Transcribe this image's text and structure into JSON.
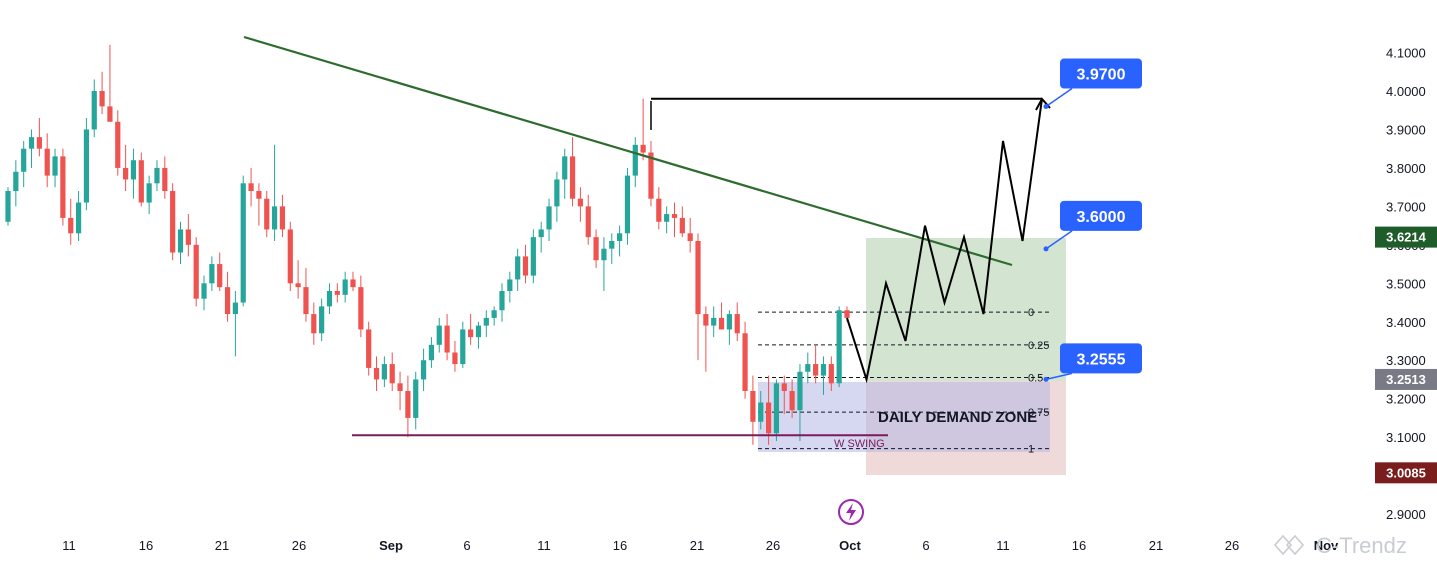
{
  "chart_data": {
    "type": "candlestick",
    "price_axis": {
      "ticks": [
        "4.1000",
        "4.0000",
        "3.9000",
        "3.8000",
        "3.7000",
        "3.6000",
        "3.5000",
        "3.4000",
        "3.3000",
        "3.2000",
        "3.1000",
        "2.9000"
      ],
      "range": [
        2.87,
        4.16
      ]
    },
    "time_axis": {
      "labels": [
        "11",
        "16",
        "21",
        "26",
        "Sep",
        "6",
        "11",
        "16",
        "21",
        "26",
        "Oct",
        "6",
        "11",
        "16",
        "21",
        "26",
        "Nov"
      ]
    },
    "price_badges": [
      {
        "name": "upper-target-badge",
        "value": "3.6214",
        "price": 3.6214,
        "color": "#1e5c2a"
      },
      {
        "name": "current-price-badge",
        "value": "3.2513",
        "price": 3.2513,
        "color": "#787b86"
      },
      {
        "name": "stop-badge",
        "value": "3.0085",
        "price": 3.0085,
        "color": "#7a1d1d"
      }
    ],
    "callouts": [
      {
        "name": "callout-target-2",
        "label": "3.9700",
        "price": 3.97,
        "color": "#2962ff"
      },
      {
        "name": "callout-target-1",
        "label": "3.6000",
        "price": 3.6,
        "color": "#2962ff"
      },
      {
        "name": "callout-entry",
        "label": "3.2555",
        "price": 3.2555,
        "color": "#2962ff"
      }
    ],
    "fib_levels": [
      {
        "label": "0",
        "price": 3.425
      },
      {
        "label": "0.25",
        "price": 3.34
      },
      {
        "label": "0.5",
        "price": 3.255
      },
      {
        "label": "0.75",
        "price": 3.165
      },
      {
        "label": "1",
        "price": 3.07
      }
    ],
    "annotations": {
      "demand_zone_label": "DAILY DEMAND ZONE",
      "swing_label": "W SWING",
      "watermark": "C-Trendz",
      "swing_low_price": 3.105,
      "target_high_price": 3.98,
      "entry_price": 3.2555,
      "stop_price": 3.0085,
      "tp_price": 3.6214
    },
    "colors": {
      "up": "#26a69a",
      "down": "#ef5350",
      "trendline": "#2e6b2e",
      "swing": "#7b1b5c",
      "callout": "#2962ff"
    },
    "candles": [
      [
        3.66,
        3.75,
        3.65,
        3.74
      ],
      [
        3.74,
        3.82,
        3.7,
        3.79
      ],
      [
        3.79,
        3.87,
        3.75,
        3.85
      ],
      [
        3.85,
        3.9,
        3.8,
        3.88
      ],
      [
        3.88,
        3.93,
        3.83,
        3.85
      ],
      [
        3.85,
        3.89,
        3.75,
        3.78
      ],
      [
        3.78,
        3.85,
        3.75,
        3.83
      ],
      [
        3.83,
        3.85,
        3.65,
        3.67
      ],
      [
        3.67,
        3.72,
        3.6,
        3.63
      ],
      [
        3.63,
        3.74,
        3.61,
        3.71
      ],
      [
        3.71,
        3.93,
        3.69,
        3.9
      ],
      [
        3.9,
        4.03,
        3.88,
        4.0
      ],
      [
        4.0,
        4.05,
        3.94,
        3.96
      ],
      [
        3.96,
        4.12,
        3.93,
        3.92
      ],
      [
        3.92,
        3.95,
        3.78,
        3.8
      ],
      [
        3.8,
        3.86,
        3.74,
        3.77
      ],
      [
        3.77,
        3.85,
        3.72,
        3.82
      ],
      [
        3.82,
        3.84,
        3.7,
        3.71
      ],
      [
        3.71,
        3.78,
        3.68,
        3.76
      ],
      [
        3.76,
        3.82,
        3.74,
        3.8
      ],
      [
        3.8,
        3.83,
        3.72,
        3.74
      ],
      [
        3.74,
        3.76,
        3.56,
        3.58
      ],
      [
        3.58,
        3.66,
        3.55,
        3.64
      ],
      [
        3.64,
        3.68,
        3.57,
        3.6
      ],
      [
        3.6,
        3.62,
        3.44,
        3.46
      ],
      [
        3.46,
        3.52,
        3.43,
        3.5
      ],
      [
        3.5,
        3.57,
        3.48,
        3.55
      ],
      [
        3.55,
        3.58,
        3.48,
        3.49
      ],
      [
        3.49,
        3.53,
        3.4,
        3.42
      ],
      [
        3.42,
        3.48,
        3.31,
        3.45
      ],
      [
        3.45,
        3.78,
        3.44,
        3.76
      ],
      [
        3.76,
        3.8,
        3.7,
        3.74
      ],
      [
        3.74,
        3.76,
        3.65,
        3.72
      ],
      [
        3.72,
        3.74,
        3.62,
        3.64
      ],
      [
        3.64,
        3.86,
        3.61,
        3.7
      ],
      [
        3.7,
        3.73,
        3.62,
        3.64
      ],
      [
        3.64,
        3.66,
        3.48,
        3.5
      ],
      [
        3.5,
        3.56,
        3.46,
        3.49
      ],
      [
        3.49,
        3.54,
        3.4,
        3.42
      ],
      [
        3.42,
        3.45,
        3.34,
        3.37
      ],
      [
        3.37,
        3.46,
        3.35,
        3.44
      ],
      [
        3.44,
        3.5,
        3.42,
        3.48
      ],
      [
        3.48,
        3.5,
        3.45,
        3.47
      ],
      [
        3.47,
        3.53,
        3.45,
        3.51
      ],
      [
        3.51,
        3.53,
        3.48,
        3.49
      ],
      [
        3.49,
        3.52,
        3.36,
        3.38
      ],
      [
        3.38,
        3.4,
        3.26,
        3.28
      ],
      [
        3.28,
        3.31,
        3.22,
        3.25
      ],
      [
        3.25,
        3.31,
        3.23,
        3.29
      ],
      [
        3.29,
        3.32,
        3.22,
        3.24
      ],
      [
        3.24,
        3.27,
        3.17,
        3.22
      ],
      [
        3.22,
        3.26,
        3.1,
        3.15
      ],
      [
        3.15,
        3.27,
        3.12,
        3.25
      ],
      [
        3.25,
        3.33,
        3.22,
        3.3
      ],
      [
        3.3,
        3.36,
        3.28,
        3.34
      ],
      [
        3.34,
        3.41,
        3.32,
        3.39
      ],
      [
        3.39,
        3.42,
        3.3,
        3.32
      ],
      [
        3.32,
        3.35,
        3.27,
        3.29
      ],
      [
        3.29,
        3.4,
        3.28,
        3.38
      ],
      [
        3.38,
        3.42,
        3.34,
        3.36
      ],
      [
        3.36,
        3.4,
        3.33,
        3.39
      ],
      [
        3.39,
        3.43,
        3.36,
        3.41
      ],
      [
        3.41,
        3.44,
        3.39,
        3.43
      ],
      [
        3.43,
        3.5,
        3.4,
        3.48
      ],
      [
        3.48,
        3.53,
        3.45,
        3.51
      ],
      [
        3.51,
        3.59,
        3.48,
        3.57
      ],
      [
        3.57,
        3.6,
        3.5,
        3.52
      ],
      [
        3.52,
        3.64,
        3.5,
        3.62
      ],
      [
        3.62,
        3.66,
        3.58,
        3.64
      ],
      [
        3.64,
        3.72,
        3.61,
        3.7
      ],
      [
        3.7,
        3.79,
        3.66,
        3.77
      ],
      [
        3.77,
        3.85,
        3.72,
        3.83
      ],
      [
        3.83,
        3.88,
        3.7,
        3.72
      ],
      [
        3.72,
        3.75,
        3.66,
        3.7
      ],
      [
        3.7,
        3.73,
        3.6,
        3.62
      ],
      [
        3.62,
        3.64,
        3.54,
        3.56
      ],
      [
        3.56,
        3.62,
        3.48,
        3.59
      ],
      [
        3.59,
        3.63,
        3.55,
        3.61
      ],
      [
        3.61,
        3.65,
        3.57,
        3.63
      ],
      [
        3.63,
        3.8,
        3.6,
        3.78
      ],
      [
        3.78,
        3.88,
        3.75,
        3.86
      ],
      [
        3.86,
        3.98,
        3.82,
        3.84
      ],
      [
        3.84,
        3.87,
        3.7,
        3.72
      ],
      [
        3.72,
        3.75,
        3.64,
        3.66
      ],
      [
        3.66,
        3.7,
        3.63,
        3.68
      ],
      [
        3.68,
        3.71,
        3.62,
        3.67
      ],
      [
        3.67,
        3.7,
        3.62,
        3.63
      ],
      [
        3.63,
        3.67,
        3.58,
        3.61
      ],
      [
        3.61,
        3.63,
        3.3,
        3.42
      ],
      [
        3.42,
        3.44,
        3.27,
        3.39
      ],
      [
        3.39,
        3.44,
        3.36,
        3.41
      ],
      [
        3.41,
        3.45,
        3.38,
        3.38
      ],
      [
        3.38,
        3.43,
        3.34,
        3.42
      ],
      [
        3.42,
        3.45,
        3.35,
        3.37
      ],
      [
        3.37,
        3.4,
        3.2,
        3.22
      ],
      [
        3.22,
        3.26,
        3.08,
        3.14
      ],
      [
        3.14,
        3.22,
        3.12,
        3.19
      ],
      [
        3.19,
        3.26,
        3.08,
        3.11
      ],
      [
        3.11,
        3.25,
        3.09,
        3.24
      ],
      [
        3.24,
        3.26,
        3.16,
        3.22
      ],
      [
        3.22,
        3.25,
        3.15,
        3.17
      ],
      [
        3.17,
        3.29,
        3.09,
        3.27
      ],
      [
        3.27,
        3.32,
        3.24,
        3.29
      ],
      [
        3.29,
        3.34,
        3.24,
        3.26
      ],
      [
        3.26,
        3.31,
        3.21,
        3.29
      ],
      [
        3.29,
        3.31,
        3.22,
        3.24
      ],
      [
        3.24,
        3.44,
        3.23,
        3.43
      ],
      [
        3.43,
        3.44,
        3.4,
        3.41
      ]
    ],
    "projection_path": [
      [
        3.41,
        0
      ],
      [
        3.25,
        1
      ],
      [
        3.5,
        2
      ],
      [
        3.35,
        3
      ],
      [
        3.65,
        4
      ],
      [
        3.45,
        5
      ],
      [
        3.62,
        6
      ],
      [
        3.42,
        7
      ],
      [
        3.87,
        8
      ],
      [
        3.61,
        9
      ],
      [
        3.98,
        10
      ]
    ]
  }
}
